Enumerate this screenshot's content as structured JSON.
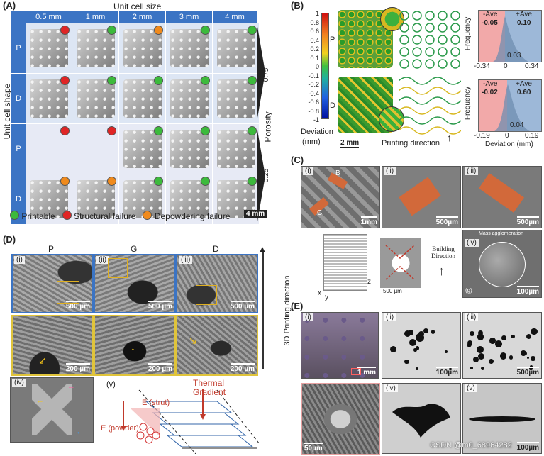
{
  "panelA": {
    "label": "(A)",
    "header": "Unit cell size",
    "sizes": [
      "0.5 mm",
      "1 mm",
      "2 mm",
      "3 mm",
      "4 mm"
    ],
    "row_labels": [
      "P",
      "D",
      "P",
      "D"
    ],
    "shape_axis": "Unit cell shape",
    "porosity_axis": "Porosity",
    "porosity_values": [
      "0.75",
      "0.25"
    ],
    "legend": [
      "Printable",
      "Structural failure",
      "Depowdering failure"
    ],
    "scale": "4 mm",
    "status_grid": [
      [
        "r",
        "g",
        "o",
        "g",
        "g"
      ],
      [
        "r",
        "g",
        "g",
        "g",
        "g"
      ],
      [
        "r",
        "r",
        "g",
        "g",
        "g"
      ],
      [
        "o",
        "o",
        "g",
        "g",
        "g"
      ]
    ],
    "colors": {
      "printable": "#3cba3c",
      "structural": "#e02525",
      "depowdering": "#f08a1c",
      "header": "#3b74c4"
    }
  },
  "panelB": {
    "label": "(B)",
    "colorbar_ticks": [
      "1",
      "0.8",
      "0.6",
      "0.4",
      "0.2",
      "0.1",
      "0",
      "-0.1",
      "-0.2",
      "-0.4",
      "-0.6",
      "-0.8",
      "-1"
    ],
    "colorbar_title": "Deviation",
    "colorbar_unit": "(mm)",
    "shape_labels": [
      "P",
      "D"
    ],
    "scale": "2 mm",
    "printing_direction": "Printing direction",
    "hist_top": {
      "neg_label": "-Ave",
      "neg_value": "-0.05",
      "pos_label": "+Ave",
      "pos_value": "0.10",
      "ticks": [
        "-0.34",
        "0",
        "0.34"
      ],
      "center": "0.03",
      "ylabel": "Frequency"
    },
    "hist_bottom": {
      "neg_label": "-Ave",
      "neg_value": "-0.02",
      "pos_label": "+Ave",
      "pos_value": "0.60",
      "ticks": [
        "-0.19",
        "0",
        "0.19"
      ],
      "center": "0.04",
      "ylabel": "Frequency",
      "xlabel": "Deviation (mm)"
    }
  },
  "panelC": {
    "label": "(C)",
    "subs": [
      "(i)",
      "(ii)",
      "(iii)",
      "(iv)"
    ],
    "scales": [
      "1mm",
      "500µm",
      "500µm",
      "100µm"
    ],
    "markers": [
      "B",
      "C"
    ],
    "building_direction": "Building Direction",
    "mass_agglomeration": "Mass agglomeration",
    "small_scale": "500 µm",
    "axis_letters": [
      "x",
      "y",
      "z"
    ],
    "sub_g": "(g)"
  },
  "panelD": {
    "label": "(D)",
    "cols": [
      "P",
      "G",
      "D"
    ],
    "subs": [
      "(i)",
      "(ii)",
      "(iii)",
      "(iv)",
      "(v)"
    ],
    "top_scales": [
      "500 µm",
      "500 µm",
      "500 µm"
    ],
    "mid_scales": [
      "200 µm",
      "200 µm",
      "200 µm"
    ],
    "print_dir": "3D Printing direction",
    "thermal": "Thermal Gradient",
    "e_strut": "E (strut)",
    "e_powder": "E (powder)"
  },
  "panelE": {
    "label": "(E)",
    "subs": [
      "(i)",
      "(ii)",
      "(iii)",
      "(iv)",
      "(v)"
    ],
    "scales": [
      "1 mm",
      "100µm",
      "500µm",
      "50µm",
      "100µm"
    ],
    "watermark": "CSDN @m0_68964282"
  }
}
